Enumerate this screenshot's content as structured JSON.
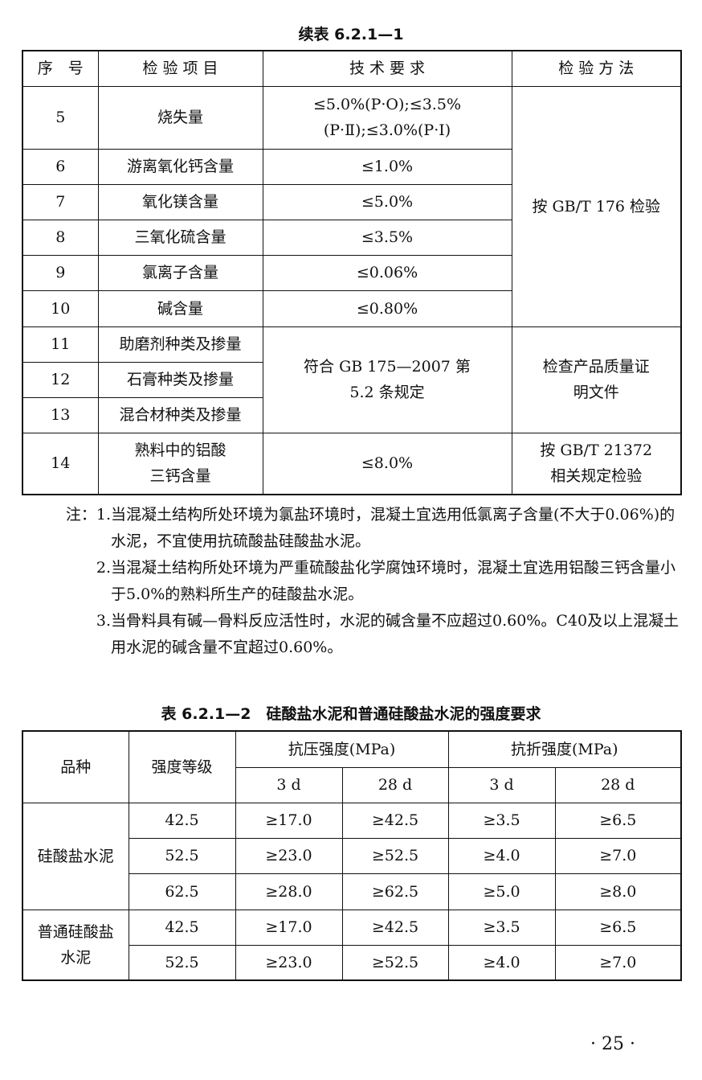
{
  "table1": {
    "caption": "续表 6.2.1—1",
    "headers": [
      "序　号",
      "检 验 项 目",
      "技 术 要 求",
      "检 验 方 法"
    ],
    "rows": [
      {
        "no": "5",
        "item": "烧失量",
        "req": "≤5.0%(P·O);≤3.5%(P·Ⅱ);≤3.0%(P·Ⅰ)"
      },
      {
        "no": "6",
        "item": "游离氧化钙含量",
        "req": "≤1.0%"
      },
      {
        "no": "7",
        "item": "氧化镁含量",
        "req": "≤5.0%"
      },
      {
        "no": "8",
        "item": "三氧化硫含量",
        "req": "≤3.5%"
      },
      {
        "no": "9",
        "item": "氯离子含量",
        "req": "≤0.06%"
      },
      {
        "no": "10",
        "item": "碱含量",
        "req": "≤0.80%"
      },
      {
        "no": "11",
        "item": "助磨剂种类及掺量"
      },
      {
        "no": "12",
        "item": "石膏种类及掺量"
      },
      {
        "no": "13",
        "item": "混合材种类及掺量"
      },
      {
        "no": "14",
        "item": "熟料中的铝酸三钙含量",
        "req": "≤8.0%",
        "method": "按 GB/T 21372 相关规定检验"
      }
    ],
    "method_5_10": "按 GB/T 176 检验",
    "req_11_13": "符合 GB 175—2007 第 5.2 条规定",
    "method_11_13": "检查产品质量证明文件"
  },
  "notes": [
    {
      "label": "注：1.",
      "text": "当混凝土结构所处环境为氯盐环境时，混凝土宜选用低氯离子含量(不大于0.06%)的水泥，不宜使用抗硫酸盐硅酸盐水泥。"
    },
    {
      "label": "2.",
      "text": "当混凝土结构所处环境为严重硫酸盐化学腐蚀环境时，混凝土宜选用铝酸三钙含量小于5.0%的熟料所生产的硅酸盐水泥。"
    },
    {
      "label": "3.",
      "text": "当骨料具有碱—骨料反应活性时，水泥的碱含量不应超过0.60%。C40及以上混凝土用水泥的碱含量不宜超过0.60%。"
    }
  ],
  "table2": {
    "caption": "表 6.2.1—2　硅酸盐水泥和普通硅酸盐水泥的强度要求",
    "h_variety": "品种",
    "h_grade": "强度等级",
    "h_comp": "抗压强度(MPa)",
    "h_flex": "抗折强度(MPa)",
    "sub": [
      "3 d",
      "28 d",
      "3 d",
      "28 d"
    ],
    "group1": "硅酸盐水泥",
    "group2": "普通硅酸盐水泥",
    "rows": [
      [
        "42.5",
        "≥17.0",
        "≥42.5",
        "≥3.5",
        "≥6.5"
      ],
      [
        "52.5",
        "≥23.0",
        "≥52.5",
        "≥4.0",
        "≥7.0"
      ],
      [
        "62.5",
        "≥28.0",
        "≥62.5",
        "≥5.0",
        "≥8.0"
      ],
      [
        "42.5",
        "≥17.0",
        "≥42.5",
        "≥3.5",
        "≥6.5"
      ],
      [
        "52.5",
        "≥23.0",
        "≥52.5",
        "≥4.0",
        "≥7.0"
      ]
    ]
  },
  "page_number": "· 25 ·"
}
